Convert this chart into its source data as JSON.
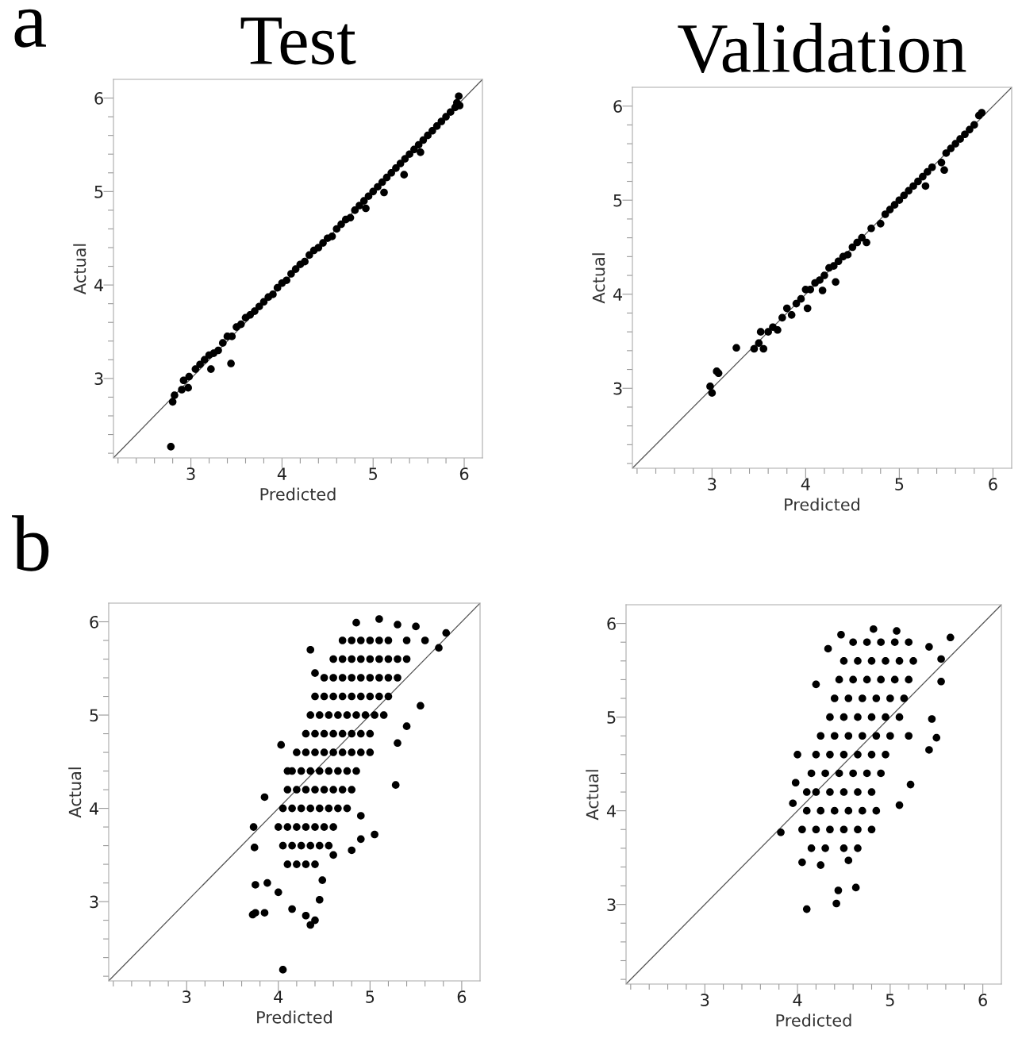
{
  "chart_data": [
    {
      "type": "scatter",
      "title": "Test",
      "xlabel": "Predicted",
      "ylabel": "Actual",
      "annotations": [
        "a"
      ],
      "grid": false,
      "xlim": [
        2.15,
        6.2
      ],
      "ylim": [
        2.15,
        6.2
      ],
      "xticks": [
        {
          "value": 2.2,
          "label": null
        },
        {
          "value": 2.4,
          "label": null
        },
        {
          "value": 2.6,
          "label": null
        },
        {
          "value": 2.8,
          "label": null
        },
        3,
        {
          "value": 3.2,
          "label": null
        },
        {
          "value": 3.4,
          "label": null
        },
        {
          "value": 3.6,
          "label": null
        },
        {
          "value": 3.8,
          "label": null
        },
        4,
        {
          "value": 4.2,
          "label": null
        },
        {
          "value": 4.4,
          "label": null
        },
        {
          "value": 4.6,
          "label": null
        },
        {
          "value": 4.8,
          "label": null
        },
        5,
        {
          "value": 5.2,
          "label": null
        },
        {
          "value": 5.4,
          "label": null
        },
        {
          "value": 5.6,
          "label": null
        },
        {
          "value": 5.8,
          "label": null
        },
        6
      ],
      "yticks": [
        {
          "value": 2.2,
          "label": null
        },
        {
          "value": 2.4,
          "label": null
        },
        {
          "value": 2.6,
          "label": null
        },
        {
          "value": 2.8,
          "label": null
        },
        3,
        {
          "value": 3.2,
          "label": null
        },
        {
          "value": 3.4,
          "label": null
        },
        {
          "value": 3.6,
          "label": null
        },
        {
          "value": 3.8,
          "label": null
        },
        4,
        {
          "value": 4.2,
          "label": null
        },
        {
          "value": 4.4,
          "label": null
        },
        {
          "value": 4.6,
          "label": null
        },
        {
          "value": 4.8,
          "label": null
        },
        5,
        {
          "value": 5.2,
          "label": null
        },
        {
          "value": 5.4,
          "label": null
        },
        {
          "value": 5.6,
          "label": null
        },
        {
          "value": 5.8,
          "label": null
        },
        6
      ],
      "series": [
        {
          "type": "line",
          "color": "#555555",
          "x": [
            2.15,
            6.2
          ],
          "values": [
            2.15,
            6.2
          ]
        },
        {
          "marker": "circle",
          "color": "#000000",
          "x": [
            2.78,
            2.8,
            2.82,
            2.9,
            2.92,
            2.97,
            2.98,
            3.05,
            3.1,
            3.15,
            3.2,
            3.22,
            3.25,
            3.3,
            3.35,
            3.4,
            3.44,
            3.45,
            3.5,
            3.55,
            3.6,
            3.65,
            3.7,
            3.75,
            3.8,
            3.85,
            3.9,
            3.95,
            4.0,
            4.05,
            4.1,
            4.15,
            4.2,
            4.25,
            4.3,
            4.35,
            4.4,
            4.45,
            4.5,
            4.55,
            4.6,
            4.65,
            4.7,
            4.75,
            4.8,
            4.85,
            4.9,
            4.92,
            4.95,
            5.0,
            5.05,
            5.1,
            5.12,
            5.15,
            5.2,
            5.25,
            5.3,
            5.35,
            5.34,
            5.4,
            5.45,
            5.5,
            5.52,
            5.55,
            5.6,
            5.65,
            5.7,
            5.75,
            5.8,
            5.85,
            5.9,
            5.92,
            5.94,
            5.95
          ],
          "values": [
            2.27,
            2.75,
            2.82,
            2.88,
            2.98,
            2.9,
            3.02,
            3.1,
            3.15,
            3.2,
            3.25,
            3.1,
            3.27,
            3.3,
            3.38,
            3.45,
            3.16,
            3.45,
            3.55,
            3.58,
            3.65,
            3.68,
            3.72,
            3.77,
            3.82,
            3.87,
            3.9,
            3.97,
            4.02,
            4.05,
            4.12,
            4.17,
            4.22,
            4.25,
            4.32,
            4.37,
            4.4,
            4.45,
            4.5,
            4.52,
            4.6,
            4.65,
            4.7,
            4.72,
            4.8,
            4.85,
            4.9,
            4.82,
            4.95,
            5.0,
            5.05,
            5.1,
            4.99,
            5.15,
            5.2,
            5.25,
            5.3,
            5.35,
            5.18,
            5.4,
            5.45,
            5.5,
            5.42,
            5.55,
            5.6,
            5.65,
            5.7,
            5.75,
            5.8,
            5.85,
            5.9,
            5.95,
            6.02,
            5.92
          ]
        }
      ]
    },
    {
      "type": "scatter",
      "title": "Validation",
      "xlabel": "Predicted",
      "ylabel": "Actual",
      "grid": false,
      "xlim": [
        2.15,
        6.2
      ],
      "ylim": [
        2.15,
        6.2
      ],
      "xticks": [
        {
          "value": 2.2,
          "label": null
        },
        {
          "value": 2.4,
          "label": null
        },
        {
          "value": 2.6,
          "label": null
        },
        {
          "value": 2.8,
          "label": null
        },
        3,
        {
          "value": 3.2,
          "label": null
        },
        {
          "value": 3.4,
          "label": null
        },
        {
          "value": 3.6,
          "label": null
        },
        {
          "value": 3.8,
          "label": null
        },
        4,
        {
          "value": 4.2,
          "label": null
        },
        {
          "value": 4.4,
          "label": null
        },
        {
          "value": 4.6,
          "label": null
        },
        {
          "value": 4.8,
          "label": null
        },
        5,
        {
          "value": 5.2,
          "label": null
        },
        {
          "value": 5.4,
          "label": null
        },
        {
          "value": 5.6,
          "label": null
        },
        {
          "value": 5.8,
          "label": null
        },
        6
      ],
      "yticks": [
        {
          "value": 2.2,
          "label": null
        },
        {
          "value": 2.4,
          "label": null
        },
        {
          "value": 2.6,
          "label": null
        },
        {
          "value": 2.8,
          "label": null
        },
        3,
        {
          "value": 3.2,
          "label": null
        },
        {
          "value": 3.4,
          "label": null
        },
        {
          "value": 3.6,
          "label": null
        },
        {
          "value": 3.8,
          "label": null
        },
        4,
        {
          "value": 4.2,
          "label": null
        },
        {
          "value": 4.4,
          "label": null
        },
        {
          "value": 4.6,
          "label": null
        },
        {
          "value": 4.8,
          "label": null
        },
        5,
        {
          "value": 5.2,
          "label": null
        },
        {
          "value": 5.4,
          "label": null
        },
        {
          "value": 5.6,
          "label": null
        },
        {
          "value": 5.8,
          "label": null
        },
        6
      ],
      "series": [
        {
          "type": "line",
          "color": "#555555",
          "x": [
            2.15,
            6.2
          ],
          "values": [
            2.15,
            6.2
          ]
        },
        {
          "marker": "circle",
          "color": "#000000",
          "x": [
            2.98,
            3.0,
            3.05,
            3.07,
            3.26,
            3.45,
            3.5,
            3.52,
            3.55,
            3.6,
            3.65,
            3.7,
            3.75,
            3.8,
            3.85,
            3.9,
            3.95,
            4.0,
            4.02,
            4.05,
            4.1,
            4.15,
            4.18,
            4.2,
            4.25,
            4.32,
            4.3,
            4.35,
            4.4,
            4.45,
            4.5,
            4.55,
            4.65,
            4.6,
            4.7,
            4.8,
            4.85,
            4.9,
            4.95,
            5.0,
            5.05,
            5.1,
            5.15,
            5.2,
            5.25,
            5.28,
            5.3,
            5.35,
            5.45,
            5.48,
            5.5,
            5.55,
            5.6,
            5.65,
            5.7,
            5.75,
            5.8,
            5.85,
            5.88
          ],
          "values": [
            3.02,
            2.95,
            3.18,
            3.16,
            3.43,
            3.42,
            3.48,
            3.6,
            3.42,
            3.6,
            3.65,
            3.62,
            3.75,
            3.85,
            3.78,
            3.9,
            3.95,
            4.05,
            3.85,
            4.05,
            4.12,
            4.15,
            4.04,
            4.2,
            4.28,
            4.13,
            4.3,
            4.35,
            4.4,
            4.42,
            4.5,
            4.55,
            4.55,
            4.6,
            4.7,
            4.75,
            4.85,
            4.9,
            4.95,
            5.0,
            5.05,
            5.1,
            5.15,
            5.2,
            5.25,
            5.15,
            5.3,
            5.35,
            5.4,
            5.32,
            5.5,
            5.55,
            5.6,
            5.65,
            5.7,
            5.75,
            5.8,
            5.9,
            5.93
          ]
        }
      ]
    },
    {
      "type": "scatter",
      "xlabel": "Predicted",
      "ylabel": "Actual",
      "annotations": [
        "b"
      ],
      "grid": false,
      "xlim": [
        2.15,
        6.2
      ],
      "ylim": [
        2.15,
        6.2
      ],
      "xticks": [
        {
          "value": 2.2,
          "label": null
        },
        {
          "value": 2.4,
          "label": null
        },
        {
          "value": 2.6,
          "label": null
        },
        {
          "value": 2.8,
          "label": null
        },
        3,
        {
          "value": 3.2,
          "label": null
        },
        {
          "value": 3.4,
          "label": null
        },
        {
          "value": 3.6,
          "label": null
        },
        {
          "value": 3.8,
          "label": null
        },
        4,
        {
          "value": 4.2,
          "label": null
        },
        {
          "value": 4.4,
          "label": null
        },
        {
          "value": 4.6,
          "label": null
        },
        {
          "value": 4.8,
          "label": null
        },
        5,
        {
          "value": 5.2,
          "label": null
        },
        {
          "value": 5.4,
          "label": null
        },
        {
          "value": 5.6,
          "label": null
        },
        {
          "value": 5.8,
          "label": null
        },
        6
      ],
      "yticks": [
        {
          "value": 2.2,
          "label": null
        },
        {
          "value": 2.4,
          "label": null
        },
        {
          "value": 2.6,
          "label": null
        },
        {
          "value": 2.8,
          "label": null
        },
        3,
        {
          "value": 3.2,
          "label": null
        },
        {
          "value": 3.4,
          "label": null
        },
        {
          "value": 3.6,
          "label": null
        },
        {
          "value": 3.8,
          "label": null
        },
        4,
        {
          "value": 4.2,
          "label": null
        },
        {
          "value": 4.4,
          "label": null
        },
        {
          "value": 4.6,
          "label": null
        },
        {
          "value": 4.8,
          "label": null
        },
        5,
        {
          "value": 5.2,
          "label": null
        },
        {
          "value": 5.4,
          "label": null
        },
        {
          "value": 5.6,
          "label": null
        },
        {
          "value": 5.8,
          "label": null
        },
        6
      ],
      "series": [
        {
          "type": "line",
          "color": "#555555",
          "x": [
            2.15,
            6.2
          ],
          "values": [
            2.15,
            6.2
          ]
        },
        {
          "marker": "circle",
          "color": "#000000",
          "x": [
            4.1,
            4.2,
            4.3,
            4.4,
            4.05,
            4.15,
            4.25,
            4.35,
            4.45,
            4.55,
            4.0,
            4.1,
            4.2,
            4.3,
            4.4,
            4.5,
            4.6,
            4.05,
            4.15,
            4.25,
            4.35,
            4.45,
            4.55,
            4.65,
            4.75,
            4.1,
            4.2,
            4.3,
            4.4,
            4.5,
            4.6,
            4.7,
            4.8,
            4.15,
            4.25,
            4.35,
            4.45,
            4.55,
            4.65,
            4.75,
            4.85,
            4.2,
            4.3,
            4.4,
            4.5,
            4.6,
            4.7,
            4.8,
            4.9,
            5.0,
            4.3,
            4.4,
            4.5,
            4.6,
            4.7,
            4.8,
            4.9,
            5.0,
            4.35,
            4.45,
            4.55,
            4.65,
            4.75,
            4.85,
            4.95,
            5.05,
            5.15,
            4.4,
            4.5,
            4.6,
            4.7,
            4.8,
            4.9,
            5.0,
            5.1,
            5.2,
            4.5,
            4.6,
            4.7,
            4.8,
            4.9,
            5.0,
            5.1,
            5.2,
            5.3,
            4.6,
            4.7,
            4.8,
            4.9,
            5.0,
            5.1,
            5.2,
            5.3,
            5.4,
            4.7,
            4.8,
            4.9,
            5.0,
            5.1,
            5.2,
            5.4,
            5.6,
            4.05,
            4.35,
            4.4,
            4.3,
            3.75,
            3.72,
            3.85,
            3.75,
            3.88,
            4.0,
            4.15,
            4.45,
            4.48,
            3.74,
            3.73,
            3.85,
            4.03,
            4.9,
            5.05,
            5.28,
            5.3,
            5.55,
            5.4,
            4.4,
            4.35,
            4.85,
            5.1,
            5.3,
            5.5,
            5.75,
            5.83,
            4.1,
            4.9,
            4.8,
            4.6
          ],
          "values": [
            3.4,
            3.4,
            3.4,
            3.4,
            3.6,
            3.6,
            3.6,
            3.6,
            3.6,
            3.6,
            3.8,
            3.8,
            3.8,
            3.8,
            3.8,
            3.8,
            3.8,
            4.0,
            4.0,
            4.0,
            4.0,
            4.0,
            4.0,
            4.0,
            4.0,
            4.2,
            4.2,
            4.2,
            4.2,
            4.2,
            4.2,
            4.2,
            4.2,
            4.4,
            4.4,
            4.4,
            4.4,
            4.4,
            4.4,
            4.4,
            4.4,
            4.6,
            4.6,
            4.6,
            4.6,
            4.6,
            4.6,
            4.6,
            4.6,
            4.6,
            4.8,
            4.8,
            4.8,
            4.8,
            4.8,
            4.8,
            4.8,
            4.8,
            5.0,
            5.0,
            5.0,
            5.0,
            5.0,
            5.0,
            5.0,
            5.0,
            5.0,
            5.2,
            5.2,
            5.2,
            5.2,
            5.2,
            5.2,
            5.2,
            5.2,
            5.2,
            5.4,
            5.4,
            5.4,
            5.4,
            5.4,
            5.4,
            5.4,
            5.4,
            5.4,
            5.6,
            5.6,
            5.6,
            5.6,
            5.6,
            5.6,
            5.6,
            5.6,
            5.6,
            5.8,
            5.8,
            5.8,
            5.8,
            5.8,
            5.8,
            5.8,
            5.8,
            2.27,
            2.75,
            2.8,
            2.85,
            2.88,
            2.86,
            2.88,
            3.18,
            3.2,
            3.1,
            2.92,
            3.02,
            3.23,
            3.58,
            3.8,
            4.12,
            4.68,
            3.67,
            3.72,
            4.25,
            4.7,
            5.1,
            4.88,
            5.45,
            5.7,
            5.99,
            6.03,
            5.97,
            5.95,
            5.72,
            5.88,
            4.4,
            3.92,
            3.55,
            3.5
          ]
        }
      ]
    },
    {
      "type": "scatter",
      "xlabel": "Predicted",
      "ylabel": "Actual",
      "grid": false,
      "xlim": [
        2.15,
        6.2
      ],
      "ylim": [
        2.15,
        6.2
      ],
      "xticks": [
        {
          "value": 2.2,
          "label": null
        },
        {
          "value": 2.4,
          "label": null
        },
        {
          "value": 2.6,
          "label": null
        },
        {
          "value": 2.8,
          "label": null
        },
        3,
        {
          "value": 3.2,
          "label": null
        },
        {
          "value": 3.4,
          "label": null
        },
        {
          "value": 3.6,
          "label": null
        },
        {
          "value": 3.8,
          "label": null
        },
        4,
        {
          "value": 4.2,
          "label": null
        },
        {
          "value": 4.4,
          "label": null
        },
        {
          "value": 4.6,
          "label": null
        },
        {
          "value": 4.8,
          "label": null
        },
        5,
        {
          "value": 5.2,
          "label": null
        },
        {
          "value": 5.4,
          "label": null
        },
        {
          "value": 5.6,
          "label": null
        },
        {
          "value": 5.8,
          "label": null
        },
        6
      ],
      "yticks": [
        {
          "value": 2.2,
          "label": null
        },
        {
          "value": 2.4,
          "label": null
        },
        {
          "value": 2.6,
          "label": null
        },
        {
          "value": 2.8,
          "label": null
        },
        3,
        {
          "value": 3.2,
          "label": null
        },
        {
          "value": 3.4,
          "label": null
        },
        {
          "value": 3.6,
          "label": null
        },
        {
          "value": 3.8,
          "label": null
        },
        4,
        {
          "value": 4.2,
          "label": null
        },
        {
          "value": 4.4,
          "label": null
        },
        {
          "value": 4.6,
          "label": null
        },
        {
          "value": 4.8,
          "label": null
        },
        5,
        {
          "value": 5.2,
          "label": null
        },
        {
          "value": 5.4,
          "label": null
        },
        {
          "value": 5.6,
          "label": null
        },
        {
          "value": 5.8,
          "label": null
        },
        6
      ],
      "series": [
        {
          "type": "line",
          "color": "#555555",
          "x": [
            2.15,
            6.2
          ],
          "values": [
            2.15,
            6.2
          ]
        },
        {
          "marker": "circle",
          "color": "#000000",
          "x": [
            4.15,
            4.3,
            4.5,
            4.65,
            4.05,
            4.2,
            4.35,
            4.5,
            4.65,
            4.8,
            4.1,
            4.25,
            4.4,
            4.55,
            4.7,
            4.85,
            4.1,
            4.2,
            4.35,
            4.5,
            4.65,
            4.8,
            4.15,
            4.3,
            4.45,
            4.6,
            4.75,
            4.9,
            4.2,
            4.35,
            4.5,
            4.65,
            4.8,
            4.95,
            4.25,
            4.4,
            4.55,
            4.7,
            4.85,
            5.0,
            5.2,
            4.35,
            4.5,
            4.65,
            4.8,
            4.95,
            5.1,
            4.4,
            4.55,
            4.7,
            4.85,
            5.0,
            5.15,
            4.45,
            4.6,
            4.75,
            4.9,
            5.05,
            5.2,
            4.5,
            4.65,
            4.8,
            4.95,
            5.1,
            5.25,
            4.6,
            4.75,
            4.9,
            5.05,
            5.2,
            4.1,
            4.42,
            4.44,
            4.63,
            3.82,
            3.95,
            4.0,
            3.98,
            4.05,
            4.25,
            4.55,
            5.1,
            5.22,
            5.42,
            5.5,
            5.45,
            5.55,
            5.65,
            5.55,
            4.82,
            4.47,
            5.07,
            4.33,
            4.2,
            5.42
          ],
          "values": [
            3.6,
            3.6,
            3.6,
            3.6,
            3.8,
            3.8,
            3.8,
            3.8,
            3.8,
            3.8,
            4.0,
            4.0,
            4.0,
            4.0,
            4.0,
            4.0,
            4.2,
            4.2,
            4.2,
            4.2,
            4.2,
            4.2,
            4.4,
            4.4,
            4.4,
            4.4,
            4.4,
            4.4,
            4.6,
            4.6,
            4.6,
            4.6,
            4.6,
            4.6,
            4.8,
            4.8,
            4.8,
            4.8,
            4.8,
            4.8,
            4.8,
            5.0,
            5.0,
            5.0,
            5.0,
            5.0,
            5.0,
            5.2,
            5.2,
            5.2,
            5.2,
            5.2,
            5.2,
            5.4,
            5.4,
            5.4,
            5.4,
            5.4,
            5.4,
            5.6,
            5.6,
            5.6,
            5.6,
            5.6,
            5.6,
            5.8,
            5.8,
            5.8,
            5.8,
            5.8,
            2.95,
            3.01,
            3.15,
            3.18,
            3.77,
            4.08,
            4.6,
            4.3,
            3.45,
            3.42,
            3.47,
            4.06,
            4.28,
            4.65,
            4.78,
            4.98,
            5.38,
            5.85,
            5.62,
            5.94,
            5.88,
            5.92,
            5.73,
            5.35,
            5.75
          ]
        }
      ]
    }
  ]
}
